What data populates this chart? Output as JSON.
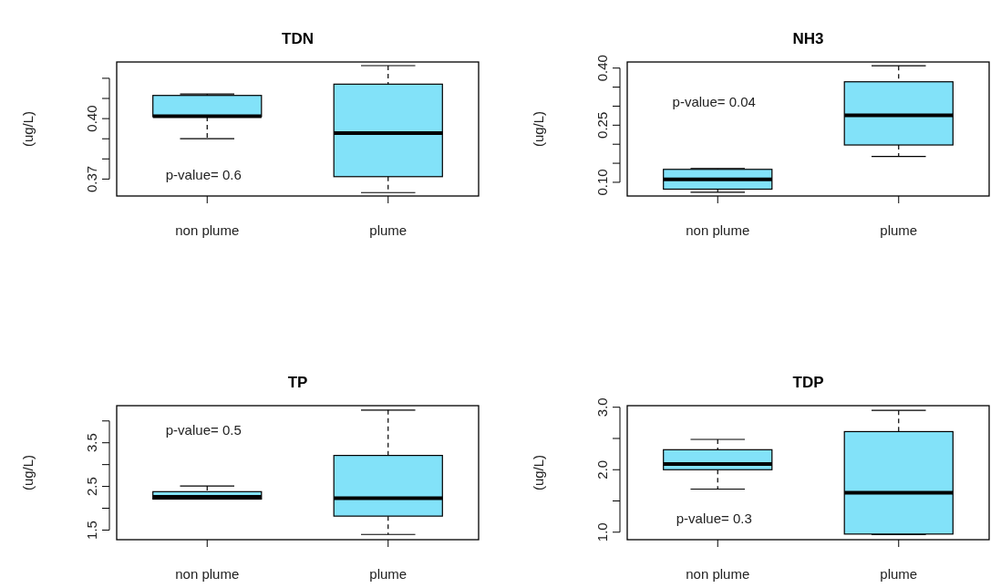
{
  "chart_data": [
    {
      "type": "box",
      "title": "TDN",
      "ylabel": "(ug/L)",
      "categories": [
        "non plume",
        "plume"
      ],
      "color": "#82e2f9",
      "annotations": [
        "p-value= 0.6"
      ],
      "ylim": [
        0.3616,
        0.4281
      ],
      "yticks": [
        {
          "value": 0.37,
          "label": "0.37"
        },
        {
          "value": 0.38,
          "label": null
        },
        {
          "value": 0.39,
          "label": null
        },
        {
          "value": 0.4,
          "label": "0.40"
        },
        {
          "value": 0.41,
          "label": null
        },
        {
          "value": 0.42,
          "label": null
        }
      ],
      "boxes": [
        {
          "low": 0.39,
          "q1": 0.401,
          "median": 0.4012,
          "q3": 0.4115,
          "high": 0.4122
        },
        {
          "low": 0.3633,
          "q1": 0.3712,
          "median": 0.3928,
          "q3": 0.4171,
          "high": 0.4263
        }
      ]
    },
    {
      "type": "box",
      "title": "NH3",
      "ylabel": "(ug/L)",
      "categories": [
        "non plume",
        "plume"
      ],
      "color": "#82e2f9",
      "annotations": [
        "p-value= 0.04"
      ],
      "ylim": [
        0.064,
        0.416
      ],
      "yticks": [
        {
          "value": 0.1,
          "label": "0.10"
        },
        {
          "value": 0.15,
          "label": null
        },
        {
          "value": 0.2,
          "label": null
        },
        {
          "value": 0.25,
          "label": "0.25"
        },
        {
          "value": 0.3,
          "label": null
        },
        {
          "value": 0.35,
          "label": null
        },
        {
          "value": 0.4,
          "label": "0.40"
        }
      ],
      "boxes": [
        {
          "low": 0.074,
          "q1": 0.082,
          "median": 0.108,
          "q3": 0.134,
          "high": 0.136
        },
        {
          "low": 0.168,
          "q1": 0.198,
          "median": 0.276,
          "q3": 0.364,
          "high": 0.406
        }
      ]
    },
    {
      "type": "box",
      "title": "TP",
      "ylabel": "(ug/L)",
      "categories": [
        "non plume",
        "plume"
      ],
      "color": "#82e2f9",
      "annotations": [
        "p-value= 0.5"
      ],
      "ylim": [
        1.28,
        4.35
      ],
      "yticks": [
        {
          "value": 1.5,
          "label": "1.5"
        },
        {
          "value": 2.0,
          "label": null
        },
        {
          "value": 2.5,
          "label": "2.5"
        },
        {
          "value": 3.0,
          "label": null
        },
        {
          "value": 3.5,
          "label": "3.5"
        },
        {
          "value": 4.0,
          "label": null
        }
      ],
      "boxes": [
        {
          "low": 2.21,
          "q1": 2.21,
          "median": 2.26,
          "q3": 2.38,
          "high": 2.51
        },
        {
          "low": 1.4,
          "q1": 1.82,
          "median": 2.23,
          "q3": 3.21,
          "high": 4.25
        }
      ]
    },
    {
      "type": "box",
      "title": "TDP",
      "ylabel": "(ug/L)",
      "categories": [
        "non plume",
        "plume"
      ],
      "color": "#82e2f9",
      "annotations": [
        "p-value= 0.3"
      ],
      "ylim": [
        0.88,
        3.025
      ],
      "yticks": [
        {
          "value": 1.0,
          "label": "1.0"
        },
        {
          "value": 1.5,
          "label": null
        },
        {
          "value": 2.0,
          "label": "2.0"
        },
        {
          "value": 2.5,
          "label": null
        },
        {
          "value": 3.0,
          "label": "3.0"
        }
      ],
      "boxes": [
        {
          "low": 1.69,
          "q1": 2.0,
          "median": 2.09,
          "q3": 2.32,
          "high": 2.485
        },
        {
          "low": 0.96,
          "q1": 0.97,
          "median": 1.63,
          "q3": 2.61,
          "high": 2.95
        }
      ]
    }
  ]
}
